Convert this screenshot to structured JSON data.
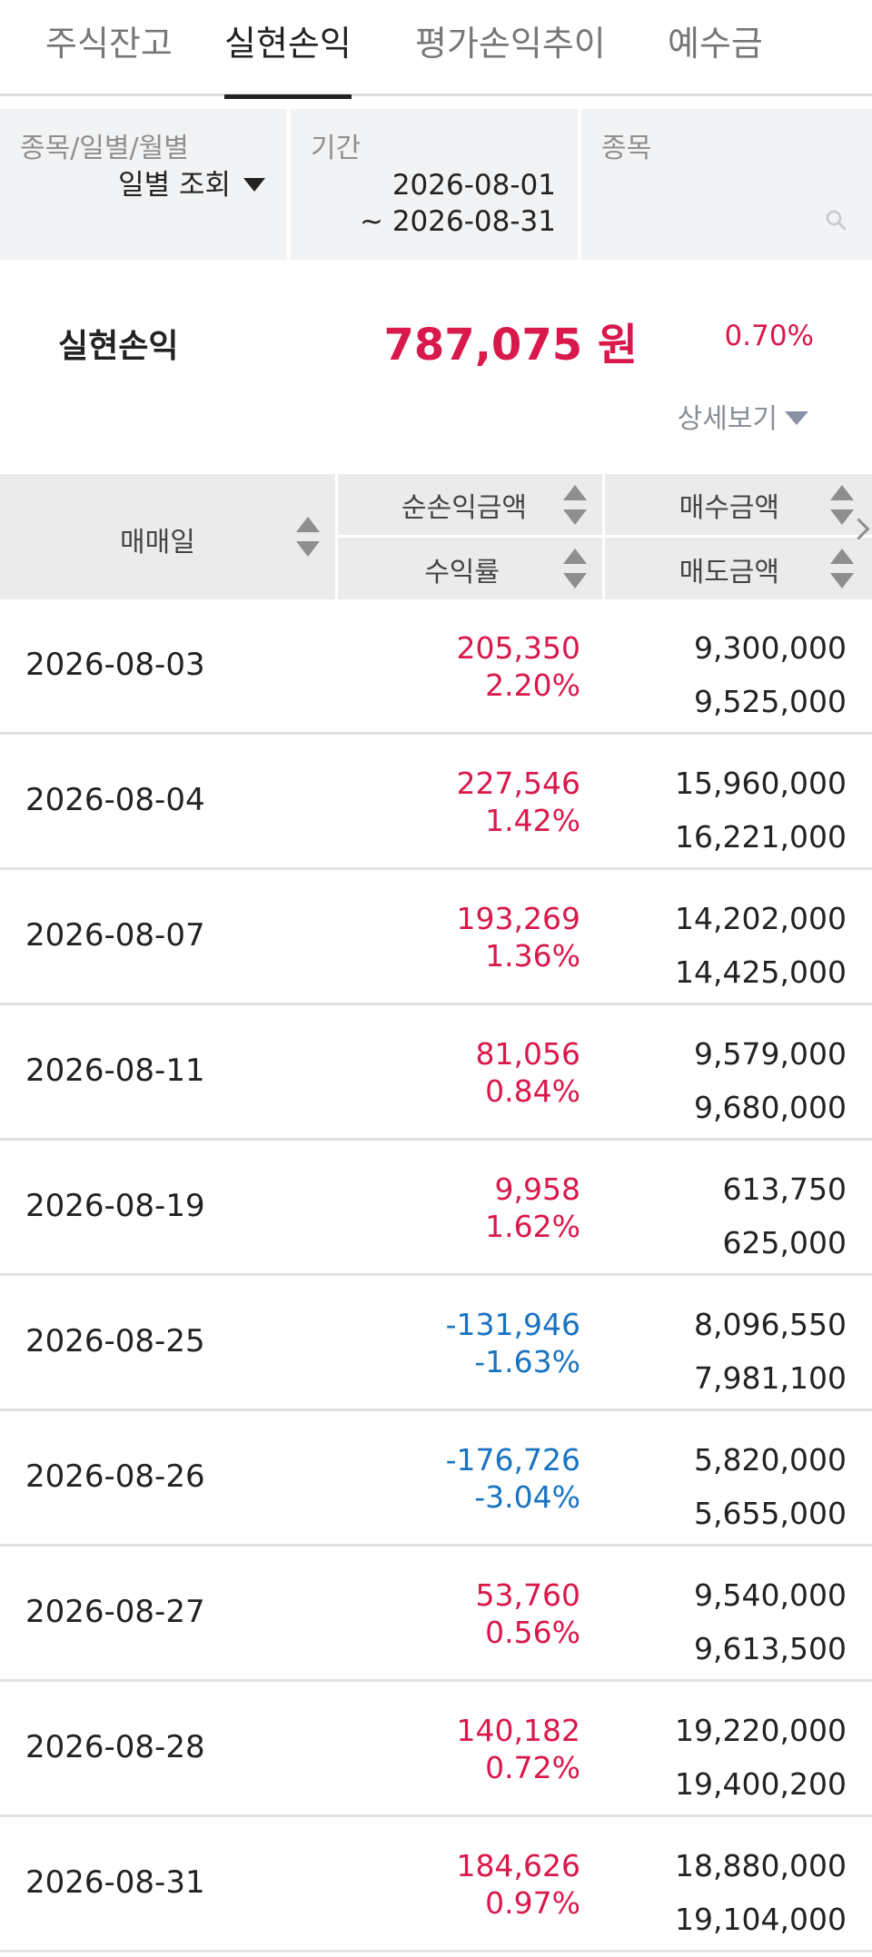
{
  "tabs": [
    {
      "label": "주식잔고",
      "active": false
    },
    {
      "label": "실현손익",
      "active": true
    },
    {
      "label": "평가손익추이",
      "active": false
    },
    {
      "label": "예수금",
      "active": false
    }
  ],
  "filter": {
    "type_label": "종목/일별/월별",
    "type_value": "일별 조회",
    "period_label": "기간",
    "period_start": "2026-08-01",
    "period_end": "~ 2026-08-31",
    "stock_label": "종목",
    "search_placeholder": ""
  },
  "summary": {
    "label": "실현손익",
    "value": "787,075 원",
    "pct": "0.70%",
    "detail_label": "상세보기"
  },
  "table": {
    "headers": {
      "date": "매매일",
      "net_profit": "순손익금액",
      "return_rate": "수익률",
      "buy_amount": "매수금액",
      "sell_amount": "매도금액"
    },
    "rows": [
      {
        "date": "2026-08-03",
        "profit": "205,350",
        "rate": "2.20%",
        "buy": "9,300,000",
        "sell": "9,525,000",
        "sign": "pos"
      },
      {
        "date": "2026-08-04",
        "profit": "227,546",
        "rate": "1.42%",
        "buy": "15,960,000",
        "sell": "16,221,000",
        "sign": "pos"
      },
      {
        "date": "2026-08-07",
        "profit": "193,269",
        "rate": "1.36%",
        "buy": "14,202,000",
        "sell": "14,425,000",
        "sign": "pos"
      },
      {
        "date": "2026-08-11",
        "profit": "81,056",
        "rate": "0.84%",
        "buy": "9,579,000",
        "sell": "9,680,000",
        "sign": "pos"
      },
      {
        "date": "2026-08-19",
        "profit": "9,958",
        "rate": "1.62%",
        "buy": "613,750",
        "sell": "625,000",
        "sign": "pos"
      },
      {
        "date": "2026-08-25",
        "profit": "-131,946",
        "rate": "-1.63%",
        "buy": "8,096,550",
        "sell": "7,981,100",
        "sign": "neg"
      },
      {
        "date": "2026-08-26",
        "profit": "-176,726",
        "rate": "-3.04%",
        "buy": "5,820,000",
        "sell": "5,655,000",
        "sign": "neg"
      },
      {
        "date": "2026-08-27",
        "profit": "53,760",
        "rate": "0.56%",
        "buy": "9,540,000",
        "sell": "9,613,500",
        "sign": "pos"
      },
      {
        "date": "2026-08-28",
        "profit": "140,182",
        "rate": "0.72%",
        "buy": "19,220,000",
        "sell": "19,400,200",
        "sign": "pos"
      },
      {
        "date": "2026-08-31",
        "profit": "184,626",
        "rate": "0.97%",
        "buy": "18,880,000",
        "sell": "19,104,000",
        "sign": "pos"
      }
    ]
  },
  "colors": {
    "positive": "#d9184b",
    "negative": "#1a73c0",
    "header_bg": "#ebebeb",
    "filter_bg": "#f1f3f5"
  },
  "icons": [
    "sort-icon",
    "search-icon",
    "caret-down-icon",
    "chevron-right-icon"
  ]
}
